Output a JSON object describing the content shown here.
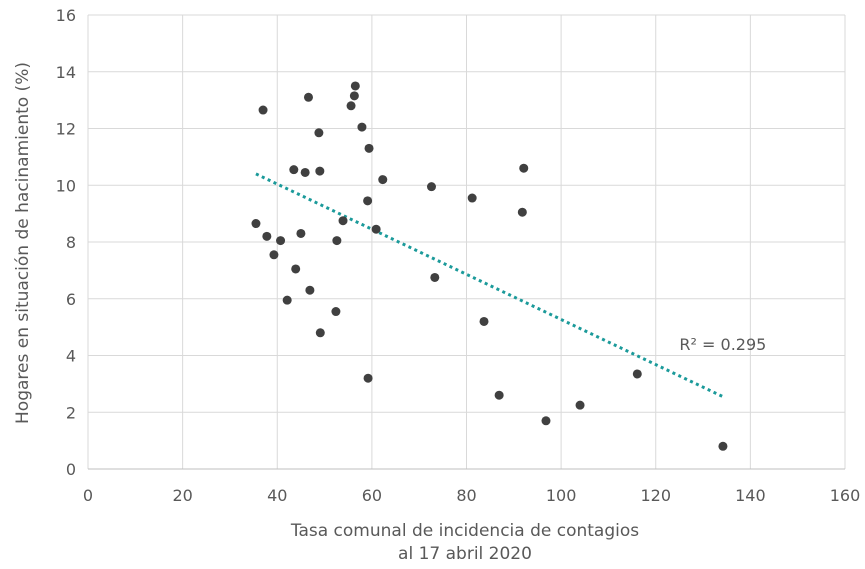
{
  "chart_data": {
    "type": "scatter",
    "title": "",
    "xlabel_lines": [
      "Tasa comunal de incidencia de contagios",
      "al 17 abril 2020"
    ],
    "ylabel": "Hogares en situación de hacinamiento (%)",
    "xlim": [
      0,
      160
    ],
    "ylim": [
      0,
      16
    ],
    "xticks": [
      "0",
      "20",
      "40",
      "60",
      "80",
      "100",
      "120",
      "140",
      "160"
    ],
    "yticks": [
      "0",
      "2",
      "4",
      "6",
      "8",
      "10",
      "12",
      "14",
      "16"
    ],
    "grid": true,
    "colors": {
      "points": "#404040",
      "trendline": "#1b9a9a",
      "grid": "#d9d9d9",
      "text": "#595959"
    },
    "points": [
      {
        "x": 37.0,
        "y": 12.65
      },
      {
        "x": 35.5,
        "y": 8.65
      },
      {
        "x": 37.8,
        "y": 8.2
      },
      {
        "x": 39.3,
        "y": 7.55
      },
      {
        "x": 40.7,
        "y": 8.05
      },
      {
        "x": 42.1,
        "y": 5.95
      },
      {
        "x": 43.5,
        "y": 10.55
      },
      {
        "x": 43.9,
        "y": 7.05
      },
      {
        "x": 45.0,
        "y": 8.3
      },
      {
        "x": 45.9,
        "y": 10.45
      },
      {
        "x": 46.6,
        "y": 13.1
      },
      {
        "x": 46.9,
        "y": 6.3
      },
      {
        "x": 48.8,
        "y": 11.85
      },
      {
        "x": 49.0,
        "y": 10.5
      },
      {
        "x": 49.1,
        "y": 4.8
      },
      {
        "x": 52.4,
        "y": 5.55
      },
      {
        "x": 52.6,
        "y": 8.05
      },
      {
        "x": 53.9,
        "y": 8.75
      },
      {
        "x": 55.6,
        "y": 12.8
      },
      {
        "x": 56.3,
        "y": 13.15
      },
      {
        "x": 56.5,
        "y": 13.5
      },
      {
        "x": 57.9,
        "y": 12.05
      },
      {
        "x": 59.1,
        "y": 9.45
      },
      {
        "x": 59.4,
        "y": 11.3
      },
      {
        "x": 59.2,
        "y": 3.2
      },
      {
        "x": 60.9,
        "y": 8.45
      },
      {
        "x": 62.3,
        "y": 10.2
      },
      {
        "x": 72.6,
        "y": 9.95
      },
      {
        "x": 73.3,
        "y": 6.75
      },
      {
        "x": 81.2,
        "y": 9.55
      },
      {
        "x": 83.7,
        "y": 5.2
      },
      {
        "x": 86.9,
        "y": 2.6
      },
      {
        "x": 91.8,
        "y": 9.05
      },
      {
        "x": 92.1,
        "y": 10.6
      },
      {
        "x": 96.8,
        "y": 1.7
      },
      {
        "x": 104.0,
        "y": 2.25
      },
      {
        "x": 116.1,
        "y": 3.35
      },
      {
        "x": 134.2,
        "y": 0.8
      }
    ],
    "trendline": {
      "type": "linear",
      "x_range": [
        35.5,
        134.2
      ],
      "y_at_start": 10.4,
      "y_at_end": 2.55
    },
    "annotation": {
      "text": "R² = 0.295",
      "x": 125,
      "y": 4.2
    }
  }
}
